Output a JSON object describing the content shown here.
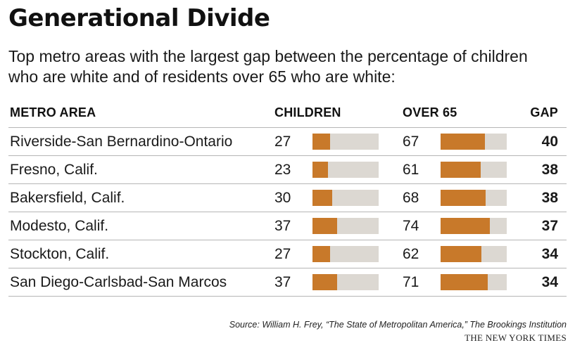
{
  "title": "Generational Divide",
  "subtitle": "Top metro areas with the largest gap between the percentage of children who are white and of residents over 65 who are white:",
  "headers": {
    "metro": "METRO AREA",
    "children": "CHILDREN",
    "over65": "OVER 65",
    "gap": "GAP"
  },
  "rows": [
    {
      "metro": "Riverside-San Bernardino-Ontario",
      "children": 27,
      "over65": 67,
      "gap": 40
    },
    {
      "metro": "Fresno, Calif.",
      "children": 23,
      "over65": 61,
      "gap": 38
    },
    {
      "metro": "Bakersfield, Calif.",
      "children": 30,
      "over65": 68,
      "gap": 38
    },
    {
      "metro": "Modesto, Calif.",
      "children": 37,
      "over65": 74,
      "gap": 37
    },
    {
      "metro": "Stockton, Calif.",
      "children": 27,
      "over65": 62,
      "gap": 34
    },
    {
      "metro": "San Diego-Carlsbad-San Marcos",
      "children": 37,
      "over65": 71,
      "gap": 34
    }
  ],
  "source": "Source: William H. Frey, “The State of Metropolitan America,” The Brookings Institution",
  "credit": "THE NEW YORK TIMES",
  "colors": {
    "fill": "#c8792a",
    "track": "#dcd8d2"
  },
  "chart_data": {
    "type": "table",
    "title": "Generational Divide",
    "columns": [
      "METRO AREA",
      "CHILDREN",
      "OVER 65",
      "GAP"
    ],
    "categories": [
      "Riverside-San Bernardino-Ontario",
      "Fresno, Calif.",
      "Bakersfield, Calif.",
      "Modesto, Calif.",
      "Stockton, Calif.",
      "San Diego-Carlsbad-San Marcos"
    ],
    "series": [
      {
        "name": "CHILDREN",
        "values": [
          27,
          23,
          30,
          37,
          27,
          37
        ]
      },
      {
        "name": "OVER 65",
        "values": [
          67,
          61,
          68,
          74,
          62,
          71
        ]
      },
      {
        "name": "GAP",
        "values": [
          40,
          38,
          38,
          37,
          34,
          34
        ]
      }
    ],
    "bar_scale": [
      0,
      100
    ]
  }
}
